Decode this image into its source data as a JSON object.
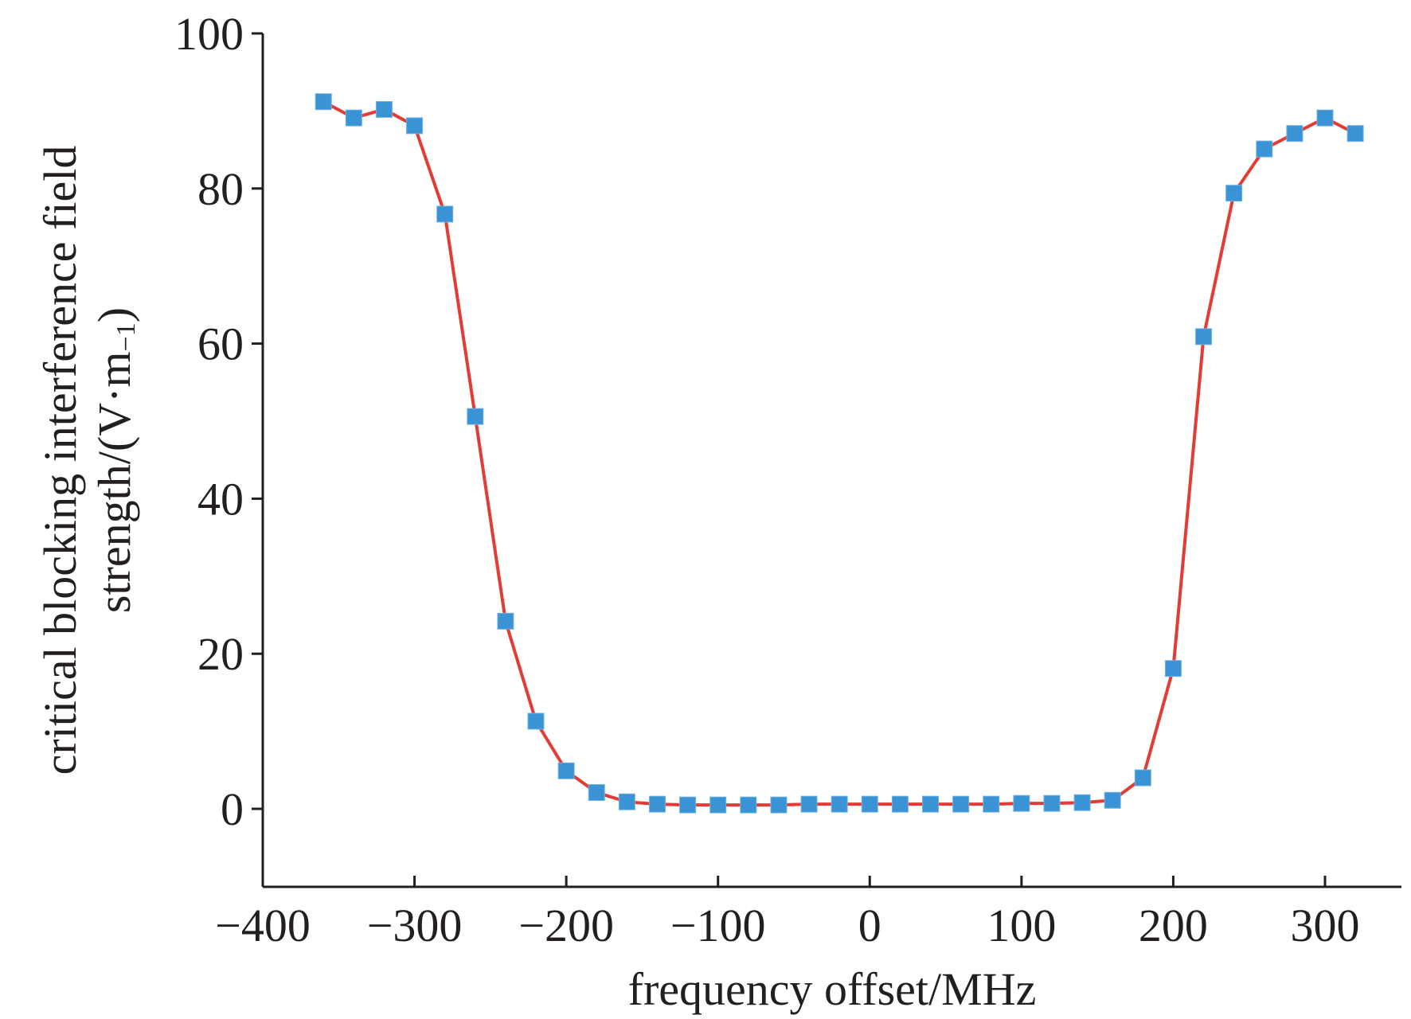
{
  "chart_data": {
    "type": "line",
    "title": "",
    "xlabel": "frequency offset/MHz",
    "ylabel_line1": "critical blocking interference field",
    "ylabel_line2": "strength/(V·m",
    "ylabel_sup": "−1",
    "ylabel_end": ")",
    "xlim": [
      -400,
      350
    ],
    "ylim": [
      -10,
      100
    ],
    "xticks": [
      -400,
      -300,
      -200,
      -100,
      0,
      100,
      200,
      300
    ],
    "xtick_labels": [
      "−400",
      "−300",
      "−200",
      "−100",
      "0",
      "100",
      "200",
      "300"
    ],
    "yticks": [
      0,
      20,
      40,
      60,
      80,
      100
    ],
    "ytick_labels": [
      "0",
      "20",
      "40",
      "60",
      "80",
      "100"
    ],
    "grid": false,
    "line_color": "#e33b35",
    "marker_color": "#3a93d4",
    "marker": "square",
    "x": [
      -360,
      -340,
      -320,
      -300,
      -280,
      -260,
      -240,
      -220,
      -200,
      -180,
      -160,
      -140,
      -120,
      -100,
      -80,
      -60,
      -40,
      -20,
      0,
      20,
      40,
      60,
      80,
      100,
      120,
      140,
      160,
      180,
      200,
      220,
      240,
      260,
      280,
      300,
      320
    ],
    "y": [
      91.2,
      89.1,
      90.2,
      88.1,
      76.7,
      50.6,
      24.2,
      11.3,
      4.9,
      2.1,
      0.9,
      0.6,
      0.5,
      0.5,
      0.5,
      0.5,
      0.6,
      0.6,
      0.6,
      0.6,
      0.6,
      0.6,
      0.6,
      0.7,
      0.7,
      0.8,
      1.1,
      4.0,
      18.1,
      60.9,
      79.4,
      85.1,
      87.1,
      89.1,
      87.1
    ]
  }
}
